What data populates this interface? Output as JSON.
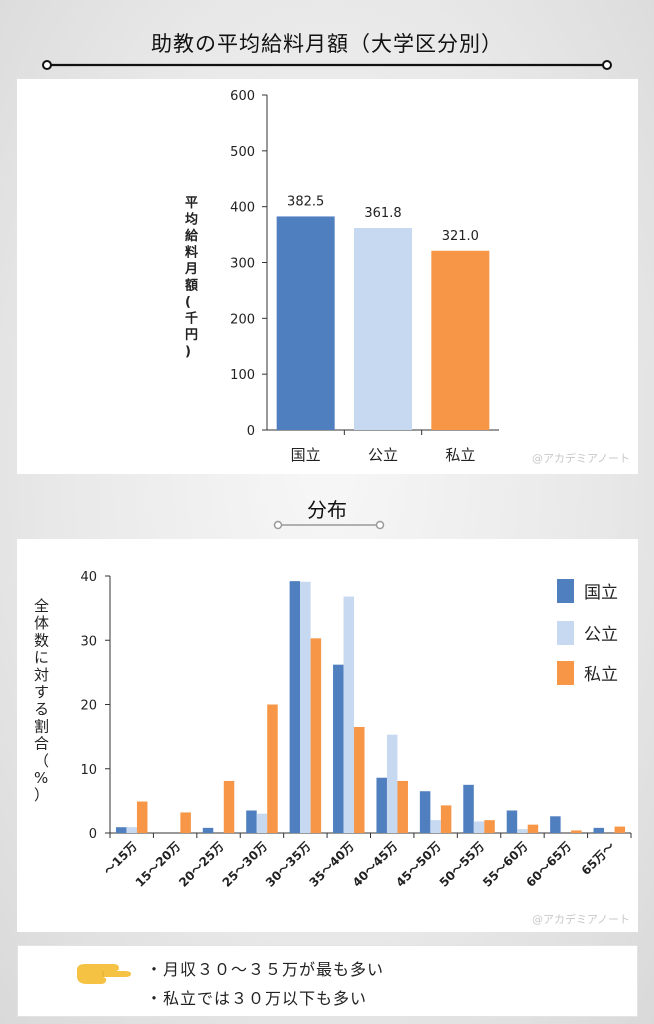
{
  "title": "助教の平均給料月額（大学区分別）",
  "section_title": "分布",
  "watermark": "@アカデミアノート",
  "colors": {
    "national": "#4f7fbf",
    "public": "#c6d9f1",
    "private": "#f79646"
  },
  "notes": [
    "・月収３０～３５万が最も多い",
    "・私立では３０万以下も多い"
  ],
  "chart_data": [
    {
      "type": "bar",
      "categories": [
        "国立",
        "公立",
        "私立"
      ],
      "values": [
        382.5,
        361.8,
        321.0
      ],
      "value_labels": [
        "382.5",
        "361.8",
        "321.0"
      ],
      "ylabel": "平均給料月額(千円)",
      "ylim": [
        0,
        600
      ],
      "yticks": [
        0,
        100,
        200,
        300,
        400,
        500,
        600
      ],
      "grid": false
    },
    {
      "type": "bar",
      "categories": [
        "～15万",
        "15～20万",
        "20～25万",
        "25～30万",
        "30～35万",
        "35～40万",
        "40～45万",
        "45～50万",
        "50～55万",
        "55～60万",
        "60～65万",
        "65万～"
      ],
      "series": [
        {
          "name": "国立",
          "values": [
            0.9,
            0.0,
            0.8,
            3.5,
            39.2,
            26.2,
            8.6,
            6.5,
            7.5,
            3.5,
            2.6,
            0.8
          ]
        },
        {
          "name": "公立",
          "values": [
            0.9,
            0.0,
            0.0,
            3.0,
            39.1,
            36.8,
            15.3,
            2.0,
            1.8,
            0.6,
            0.0,
            0.0
          ]
        },
        {
          "name": "私立",
          "values": [
            4.9,
            3.2,
            8.1,
            20.0,
            30.3,
            16.5,
            8.1,
            4.3,
            2.0,
            1.3,
            0.4,
            1.0
          ]
        }
      ],
      "ylabel": "全体数に対する割合（%）",
      "ylim": [
        0,
        40
      ],
      "yticks": [
        0,
        10,
        20,
        30,
        40
      ],
      "legend": "top-right",
      "grid": false
    }
  ]
}
